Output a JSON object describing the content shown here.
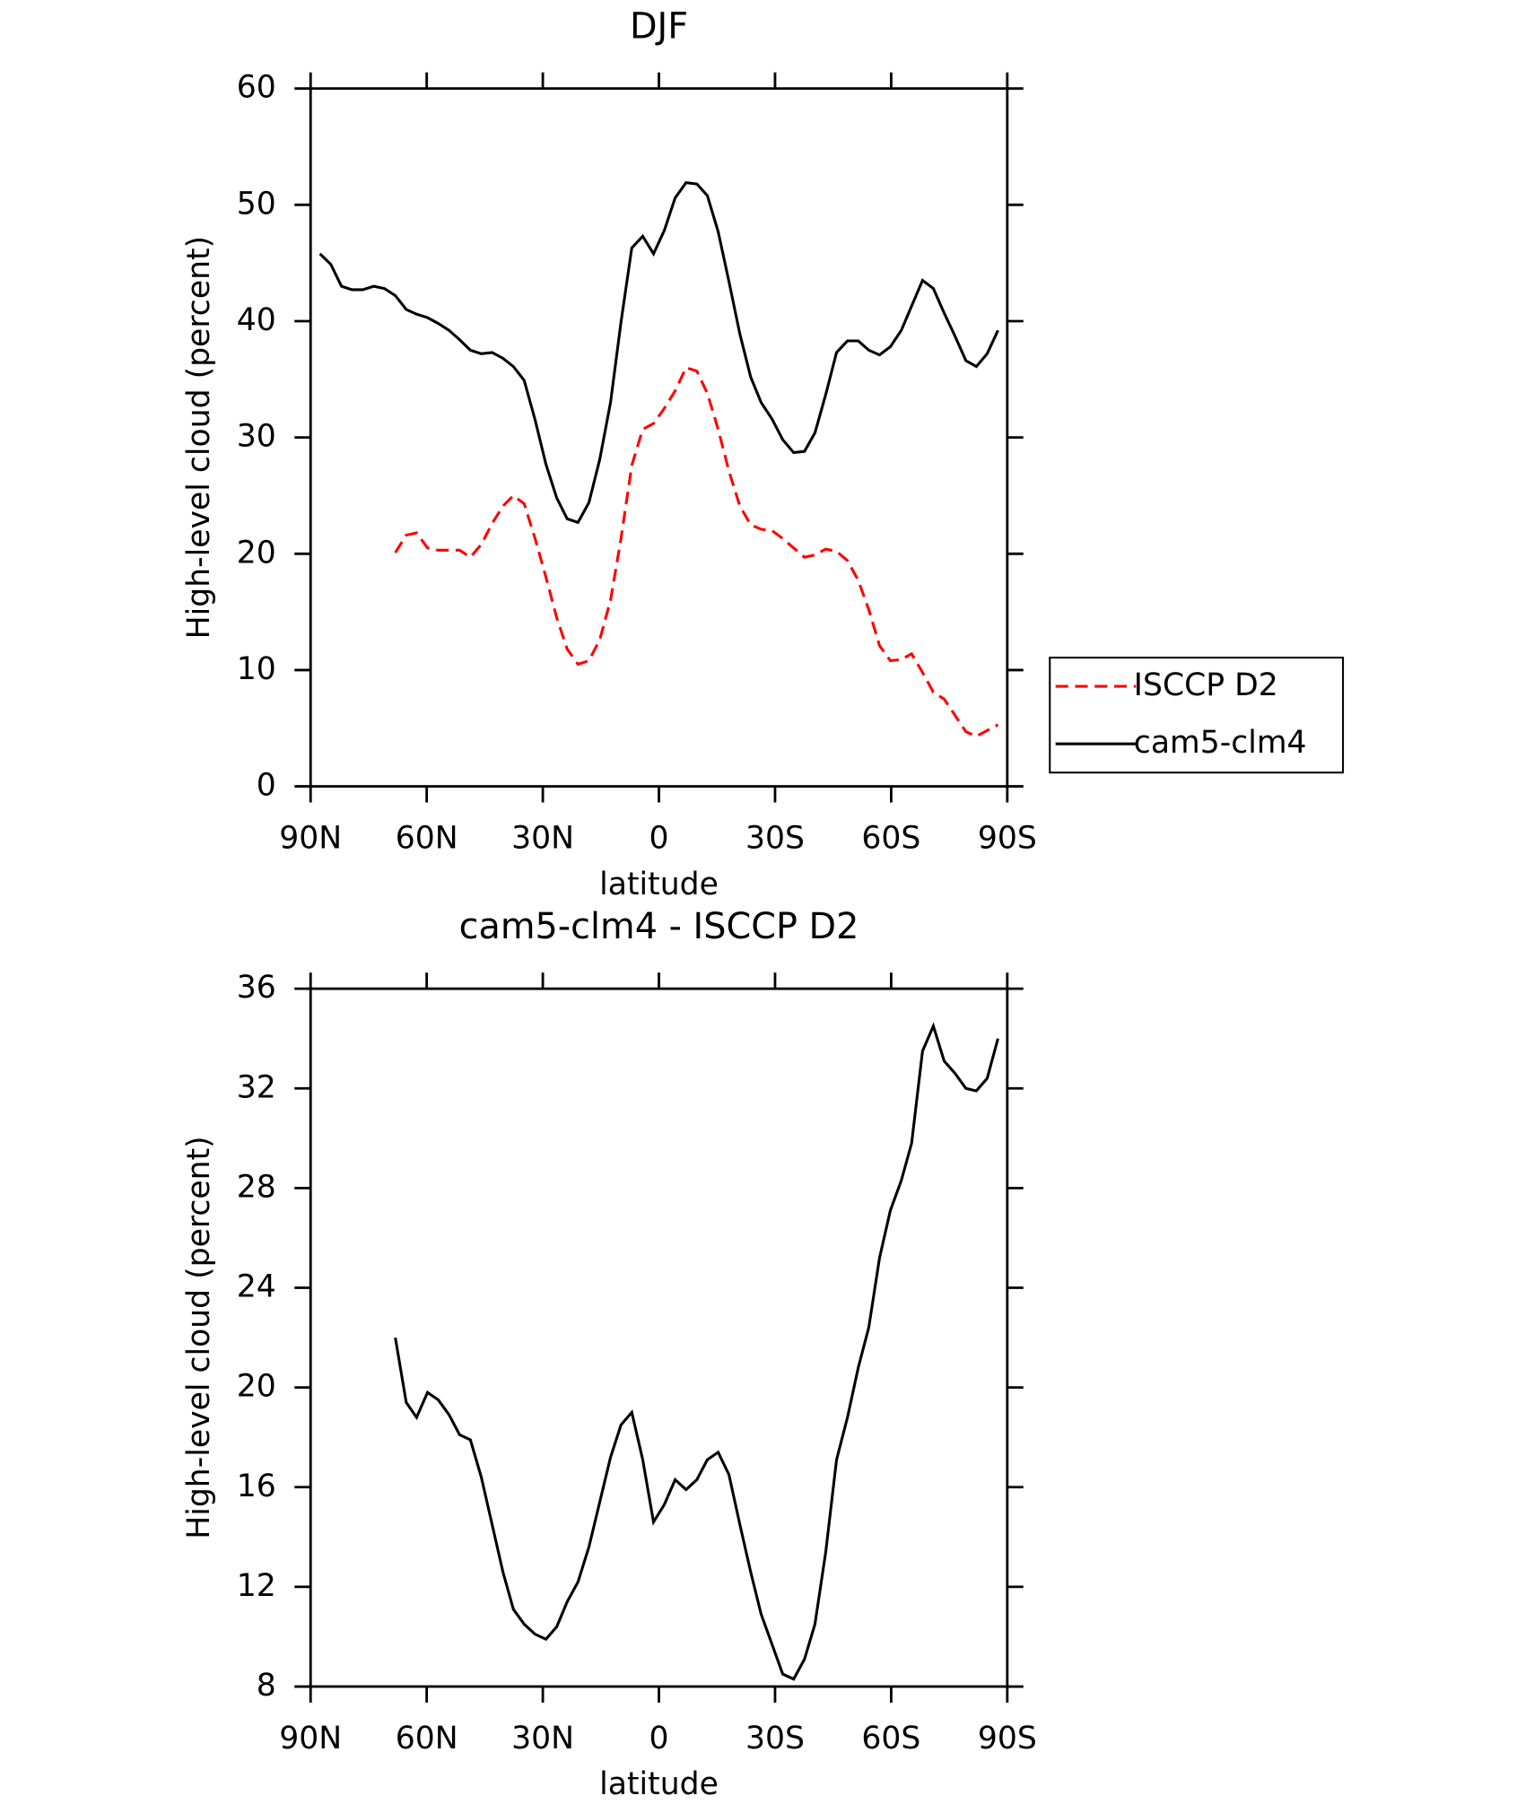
{
  "chart_data": [
    {
      "type": "line",
      "title": "DJF",
      "xlabel": "latitude",
      "ylabel": "High-level cloud (percent)",
      "xlim": [
        90,
        -90
      ],
      "xticks": [
        {
          "value": 90,
          "label": "90N"
        },
        {
          "value": 60,
          "label": "60N"
        },
        {
          "value": 30,
          "label": "30N"
        },
        0,
        {
          "value": -30,
          "label": "30S"
        },
        {
          "value": -60,
          "label": "60S"
        },
        {
          "value": -90,
          "label": "90S"
        }
      ],
      "ylim": [
        0,
        60
      ],
      "yticks": [
        0,
        10,
        20,
        30,
        40,
        50,
        60
      ],
      "legend": "outside right",
      "x": [
        87.6,
        84.8,
        82.0,
        79.3,
        76.5,
        73.7,
        70.9,
        68.1,
        65.3,
        62.6,
        59.8,
        57.0,
        54.2,
        51.5,
        48.7,
        45.9,
        43.1,
        40.3,
        37.6,
        34.8,
        32.0,
        29.2,
        26.4,
        23.7,
        20.9,
        18.1,
        15.3,
        12.5,
        9.8,
        7.0,
        4.2,
        1.4,
        -1.4,
        -4.2,
        -7.0,
        -9.8,
        -12.5,
        -15.3,
        -18.1,
        -20.9,
        -23.7,
        -26.4,
        -29.2,
        -32.0,
        -34.8,
        -37.6,
        -40.3,
        -43.1,
        -45.9,
        -48.7,
        -51.5,
        -54.2,
        -57.0,
        -59.8,
        -62.6,
        -65.3,
        -68.1,
        -70.9,
        -73.7,
        -76.5,
        -79.3,
        -82.0,
        -84.8,
        -87.6
      ],
      "series": [
        {
          "name": "ISCCP D2",
          "color": "#ff0000",
          "dash": true,
          "values": [
            null,
            null,
            null,
            null,
            null,
            null,
            null,
            20.1,
            21.6,
            21.8,
            20.5,
            20.3,
            20.3,
            20.3,
            19.7,
            20.8,
            22.6,
            24.1,
            25.0,
            24.3,
            21.3,
            18.0,
            14.5,
            11.8,
            10.5,
            10.8,
            12.6,
            16.0,
            21.3,
            27.6,
            30.7,
            31.2,
            32.5,
            34.0,
            36.0,
            35.7,
            33.8,
            30.7,
            27.1,
            24.1,
            22.5,
            22.1,
            22.0,
            21.3,
            20.5,
            19.7,
            19.9,
            20.4,
            20.2,
            19.4,
            17.7,
            15.2,
            12.1,
            10.8,
            10.9,
            11.4,
            9.8,
            8.1,
            7.5,
            6.1,
            4.7,
            4.3,
            4.8,
            5.3
          ]
        },
        {
          "name": "cam5-clm4",
          "color": "#000000",
          "dash": false,
          "values": [
            45.8,
            44.9,
            43.0,
            42.7,
            42.7,
            43.0,
            42.8,
            42.2,
            41.0,
            40.6,
            40.3,
            39.8,
            39.2,
            38.4,
            37.5,
            37.2,
            37.3,
            36.8,
            36.1,
            34.9,
            31.5,
            27.7,
            24.8,
            23.0,
            22.7,
            24.4,
            28.1,
            33.0,
            39.9,
            46.3,
            47.3,
            45.8,
            47.8,
            50.6,
            51.9,
            51.8,
            50.8,
            47.7,
            43.4,
            38.9,
            35.2,
            33.0,
            31.6,
            29.8,
            28.7,
            28.8,
            30.4,
            33.7,
            37.3,
            38.3,
            38.3,
            37.5,
            37.1,
            37.8,
            39.2,
            41.3,
            43.5,
            42.8,
            40.7,
            38.7,
            36.6,
            36.1,
            37.2,
            39.2
          ]
        }
      ]
    },
    {
      "type": "line",
      "title": "cam5-clm4 - ISCCP D2",
      "xlabel": "latitude",
      "ylabel": "High-level cloud (percent)",
      "xlim": [
        90,
        -90
      ],
      "xticks": [
        {
          "value": 90,
          "label": "90N"
        },
        {
          "value": 60,
          "label": "60N"
        },
        {
          "value": 30,
          "label": "30N"
        },
        0,
        {
          "value": -30,
          "label": "30S"
        },
        {
          "value": -60,
          "label": "60S"
        },
        {
          "value": -90,
          "label": "90S"
        }
      ],
      "ylim": [
        8,
        36
      ],
      "yticks": [
        8,
        12,
        16,
        20,
        24,
        28,
        32,
        36
      ],
      "x": [
        87.6,
        84.8,
        82.0,
        79.3,
        76.5,
        73.7,
        70.9,
        68.1,
        65.3,
        62.6,
        59.8,
        57.0,
        54.2,
        51.5,
        48.7,
        45.9,
        43.1,
        40.3,
        37.6,
        34.8,
        32.0,
        29.2,
        26.4,
        23.7,
        20.9,
        18.1,
        15.3,
        12.5,
        9.8,
        7.0,
        4.2,
        1.4,
        -1.4,
        -4.2,
        -7.0,
        -9.8,
        -12.5,
        -15.3,
        -18.1,
        -20.9,
        -23.7,
        -26.4,
        -29.2,
        -32.0,
        -34.8,
        -37.6,
        -40.3,
        -43.1,
        -45.9,
        -48.7,
        -51.5,
        -54.2,
        -57.0,
        -59.8,
        -62.6,
        -65.3,
        -68.1,
        -70.9,
        -73.7,
        -76.5,
        -79.3,
        -82.0,
        -84.8,
        -87.6
      ],
      "series": [
        {
          "color": "#000000",
          "dash": false,
          "values": [
            null,
            null,
            null,
            null,
            null,
            null,
            null,
            22.0,
            19.4,
            18.8,
            19.8,
            19.5,
            18.9,
            18.1,
            17.9,
            16.4,
            14.5,
            12.6,
            11.1,
            10.5,
            10.1,
            9.9,
            10.4,
            11.4,
            12.2,
            13.6,
            15.4,
            17.2,
            18.5,
            19.0,
            17.1,
            14.6,
            15.3,
            16.3,
            15.9,
            16.3,
            17.1,
            17.4,
            16.5,
            14.5,
            12.6,
            10.9,
            9.7,
            8.5,
            8.3,
            9.1,
            10.5,
            13.4,
            17.1,
            18.8,
            20.8,
            22.4,
            25.2,
            27.1,
            28.3,
            29.8,
            33.5,
            34.5,
            33.1,
            32.6,
            32.0,
            31.9,
            32.4,
            34.0
          ]
        }
      ]
    }
  ]
}
